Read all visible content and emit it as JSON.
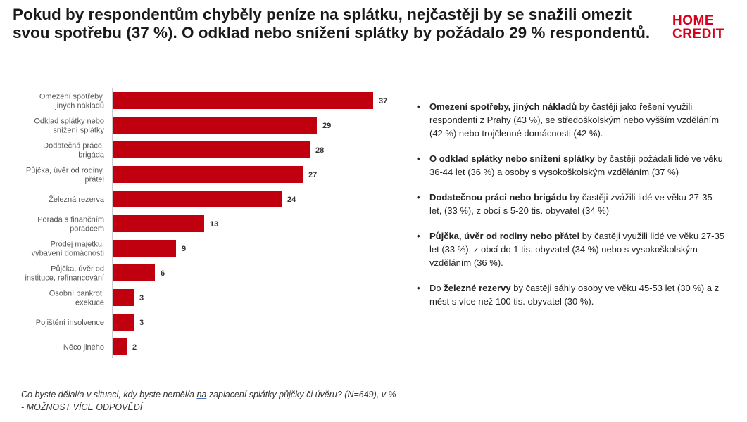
{
  "title": "Pokud by respondentům chyběly peníze na splátku, nejčastěji by se snažili omezit svou spotřebu (37 %). O odklad nebo snížení splátky by požádalo 29 % respondentů.",
  "logo": {
    "line1": "HOME",
    "line2": "CREDIT"
  },
  "colors": {
    "bar": "#c0000f",
    "brand": "#d7001a"
  },
  "chart_data": {
    "type": "bar",
    "orientation": "horizontal",
    "categories": [
      [
        "Omezení spotřeby,",
        "jiných nákladů"
      ],
      [
        "Odklad splátky nebo",
        "snížení splátky"
      ],
      [
        "Dodatečná práce,",
        "brigáda"
      ],
      [
        "Půjčka, úvěr od rodiny,",
        "přátel"
      ],
      [
        "Železná rezerva"
      ],
      [
        "Porada s finančním",
        "poradcem"
      ],
      [
        "Prodej majetku,",
        "vybavení domácnosti"
      ],
      [
        "Půjčka, úvěr od",
        "instituce, refinancování"
      ],
      [
        "Osobní bankrot,",
        "exekuce"
      ],
      [
        "Pojištění insolvence"
      ],
      [
        "Něco jiného"
      ]
    ],
    "values": [
      37,
      29,
      28,
      27,
      24,
      13,
      9,
      6,
      3,
      3,
      2
    ],
    "xlim": [
      0,
      40
    ],
    "grid": false,
    "legend": "none"
  },
  "bullets": [
    {
      "bold": "Omezení spotřeby, jiných nákladů",
      "pre": "",
      "text": " by častěji jako řešení využili respondenti z Prahy (43 %), se středoškolským nebo vyšším vzděláním (42 %) nebo trojčlenné domácnosti (42 %)."
    },
    {
      "bold": "O odklad splátky nebo snížení splátky",
      "pre": "",
      "text": " by častěji požádali lidé ve věku 36-44 let (36 %) a osoby s vysokoškolským vzděláním (37 %)"
    },
    {
      "bold": "Dodatečnou práci nebo brigádu",
      "pre": "",
      "text": " by častěji zvážili lidé ve věku 27-35 let, (33 %), z obcí s 5-20 tis. obyvatel (34 %)"
    },
    {
      "bold": "Půjčka, úvěr od rodiny nebo přátel",
      "pre": "",
      "text": " by častěji využili lidé ve věku 27-35 let (33 %), z obcí do 1 tis. obyvatel (34 %) nebo s vysokoškolským vzděláním (36 %)."
    },
    {
      "bold": "železné rezervy",
      "pre": "Do ",
      "text": " by častěji sáhly osoby ve věku 45-53 let (30 %) a z měst s více než 100 tis. obyvatel (30 %)."
    }
  ],
  "footnote": {
    "part1": "Co byste dělal/a v situaci, kdy byste neměl/a ",
    "underlined": "na",
    "part2": " zaplacení splátky půjčky či úvěru? (N=649), v % - MOŽNOST VÍCE ODPOVĚDÍ"
  }
}
